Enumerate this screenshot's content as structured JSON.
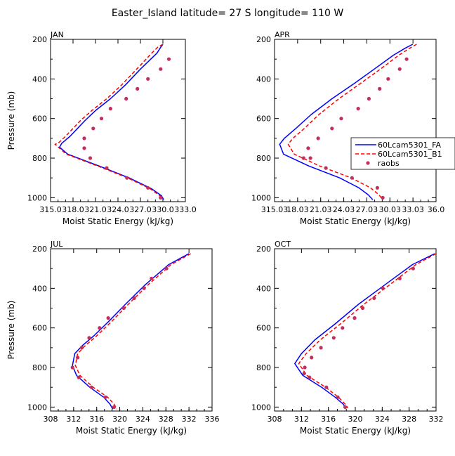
{
  "figure_title": "Easter_Island  latitude= 27 S longitude= 110 W",
  "chart_data": [
    {
      "type": "line",
      "panel_label": "JAN",
      "xlabel": "Moist Static Energy (kJ/kg)",
      "ylabel": "Pressure (mb)",
      "xlim": [
        315,
        333
      ],
      "ylim": [
        1020,
        200
      ],
      "xticks": [
        "315.0",
        "318.0",
        "321.0",
        "324.0",
        "327.0",
        "330.0",
        "333.0"
      ],
      "yticks": [
        "200",
        "400",
        "600",
        "800",
        "1000"
      ],
      "series": [
        {
          "name": "",
          "style": "solid",
          "color": "#0000ff",
          "x": [
            330.0,
            329.7,
            329.2,
            327.0,
            325.0,
            323.0,
            321.0,
            319.6,
            318.6,
            317.6,
            316.5,
            316.2,
            317.3,
            321.5,
            325.5,
            328.5,
            329.8,
            330.1
          ],
          "y": [
            225,
            240,
            270,
            350,
            430,
            500,
            560,
            610,
            650,
            690,
            725,
            745,
            780,
            840,
            900,
            955,
            990,
            1010
          ]
        },
        {
          "name": "",
          "style": "dashed",
          "color": "#ff0000",
          "x": [
            330.0,
            329.3,
            328.5,
            326.5,
            324.5,
            322.5,
            320.5,
            319.0,
            318.0,
            317.0,
            316.0,
            315.6,
            317.1,
            321.3,
            325.3,
            328.3,
            329.6,
            330.0
          ],
          "y": [
            225,
            240,
            270,
            350,
            430,
            500,
            560,
            610,
            650,
            690,
            725,
            730,
            780,
            840,
            900,
            955,
            990,
            1010
          ]
        },
        {
          "name": "",
          "style": "markers",
          "color": "#c0305a",
          "x": [
            330.8,
            329.7,
            328.0,
            326.6,
            325.1,
            323.0,
            321.8,
            320.7,
            319.5,
            319.5,
            320.3,
            322.5,
            325.2,
            328.0,
            329.7
          ],
          "y": [
            300,
            350,
            400,
            450,
            500,
            550,
            600,
            650,
            700,
            750,
            800,
            850,
            900,
            950,
            1000
          ]
        }
      ]
    },
    {
      "type": "line",
      "panel_label": "APR",
      "xlabel": "Moist Static Energy (kJ/kg)",
      "ylabel": "",
      "xlim": [
        315.03,
        336.03
      ],
      "ylim": [
        1020,
        200
      ],
      "xticks": [
        "315.03",
        "18.03",
        "21.03",
        "24.03",
        "27.03",
        "30.03",
        "33.03",
        "36.0"
      ],
      "yticks": [
        "200",
        "400",
        "600",
        "800",
        "1000"
      ],
      "legend_position": "right",
      "legend": [
        "60Lcam5301_FA",
        "60Lcam5301_B1",
        "raobs"
      ],
      "series": [
        {
          "name": "60Lcam5301_FA",
          "style": "solid",
          "color": "#0000ff",
          "x": [
            333.0,
            332.0,
            330.5,
            328.0,
            325.5,
            322.5,
            319.8,
            317.8,
            316.3,
            315.7,
            316.2,
            319.5,
            323.5,
            326.0,
            327.2,
            327.8
          ],
          "y": [
            225,
            245,
            280,
            350,
            420,
            500,
            580,
            650,
            700,
            730,
            780,
            840,
            900,
            950,
            985,
            1010
          ]
        },
        {
          "name": "60Lcam5301_B1",
          "style": "dashed",
          "color": "#ff0000",
          "x": [
            333.5,
            332.6,
            331.2,
            328.8,
            326.3,
            323.4,
            320.8,
            318.9,
            317.4,
            316.8,
            317.6,
            320.9,
            325.0,
            327.5,
            328.6,
            329.1
          ],
          "y": [
            225,
            245,
            280,
            350,
            420,
            500,
            580,
            650,
            700,
            730,
            780,
            840,
            900,
            950,
            985,
            1010
          ]
        },
        {
          "name": "raobs",
          "style": "markers",
          "color": "#c0305a",
          "x": [
            332.2,
            331.3,
            329.8,
            328.7,
            327.3,
            325.9,
            323.7,
            322.5,
            320.7,
            319.4,
            318.8,
            319.7,
            321.7,
            325.1,
            328.4,
            329.1
          ],
          "y": [
            300,
            350,
            400,
            450,
            500,
            550,
            600,
            650,
            700,
            750,
            800,
            800,
            850,
            900,
            950,
            1000
          ]
        }
      ]
    },
    {
      "type": "line",
      "panel_label": "JUL",
      "xlabel": "Moist Static Energy (kJ/kg)",
      "ylabel": "Pressure (mb)",
      "xlim": [
        308,
        336
      ],
      "ylim": [
        1020,
        200
      ],
      "xticks": [
        "308",
        "312",
        "316",
        "320",
        "324",
        "328",
        "332",
        "336"
      ],
      "yticks": [
        "200",
        "400",
        "600",
        "800",
        "1000"
      ],
      "series": [
        {
          "name": "",
          "style": "solid",
          "color": "#0000ff",
          "x": [
            332.0,
            328.5,
            324.5,
            321.0,
            318.0,
            315.5,
            313.5,
            312.2,
            311.8,
            312.5,
            314.8,
            317.2,
            318.3,
            318.8
          ],
          "y": [
            225,
            280,
            380,
            480,
            570,
            640,
            690,
            730,
            790,
            840,
            900,
            950,
            985,
            1010
          ]
        },
        {
          "name": "",
          "style": "dashed",
          "color": "#ff0000",
          "x": [
            332.3,
            328.9,
            325.0,
            321.5,
            318.5,
            316.0,
            314.0,
            312.7,
            312.3,
            313.1,
            315.4,
            317.9,
            319.0,
            319.5
          ],
          "y": [
            225,
            280,
            380,
            480,
            570,
            640,
            690,
            730,
            790,
            840,
            900,
            950,
            985,
            1010
          ]
        },
        {
          "name": "",
          "style": "markers",
          "color": "#c0305a",
          "x": [
            328.1,
            325.5,
            324.2,
            322.5,
            320.7,
            318.0,
            316.5,
            314.7,
            313.4,
            312.7,
            311.8,
            312.9,
            315.1,
            317.5,
            319.0
          ],
          "y": [
            300,
            350,
            400,
            450,
            500,
            550,
            600,
            650,
            700,
            750,
            800,
            850,
            900,
            950,
            1000
          ]
        }
      ]
    },
    {
      "type": "line",
      "panel_label": "OCT",
      "xlabel": "Moist Static Energy (kJ/kg)",
      "ylabel": "",
      "xlim": [
        308,
        332
      ],
      "ylim": [
        1020,
        200
      ],
      "xticks": [
        "308",
        "312",
        "316",
        "320",
        "324",
        "328",
        "332"
      ],
      "yticks": [
        "200",
        "400",
        "600",
        "800",
        "1000"
      ],
      "series": [
        {
          "name": "",
          "style": "solid",
          "color": "#0000ff",
          "x": [
            331.8,
            328.5,
            324.5,
            320.5,
            317.0,
            314.0,
            312.0,
            311.0,
            312.2,
            315.0,
            317.0,
            318.2,
            318.6
          ],
          "y": [
            225,
            280,
            380,
            480,
            580,
            660,
            730,
            780,
            840,
            900,
            950,
            985,
            1005
          ]
        },
        {
          "name": "",
          "style": "dashed",
          "color": "#ff0000",
          "x": [
            332.0,
            329.0,
            325.2,
            321.3,
            317.8,
            314.8,
            312.7,
            311.6,
            312.8,
            315.6,
            317.5,
            318.5,
            318.9
          ],
          "y": [
            225,
            280,
            380,
            480,
            580,
            660,
            730,
            780,
            840,
            900,
            950,
            985,
            1005
          ]
        },
        {
          "name": "",
          "style": "markers",
          "color": "#c0305a",
          "x": [
            328.6,
            326.6,
            324.1,
            322.8,
            321.1,
            319.9,
            318.1,
            316.8,
            314.9,
            313.5,
            312.5,
            312.4,
            313.2,
            315.7,
            317.4,
            318.5
          ],
          "y": [
            300,
            350,
            400,
            450,
            500,
            550,
            600,
            650,
            700,
            750,
            800,
            830,
            850,
            900,
            950,
            1000
          ]
        }
      ]
    }
  ]
}
